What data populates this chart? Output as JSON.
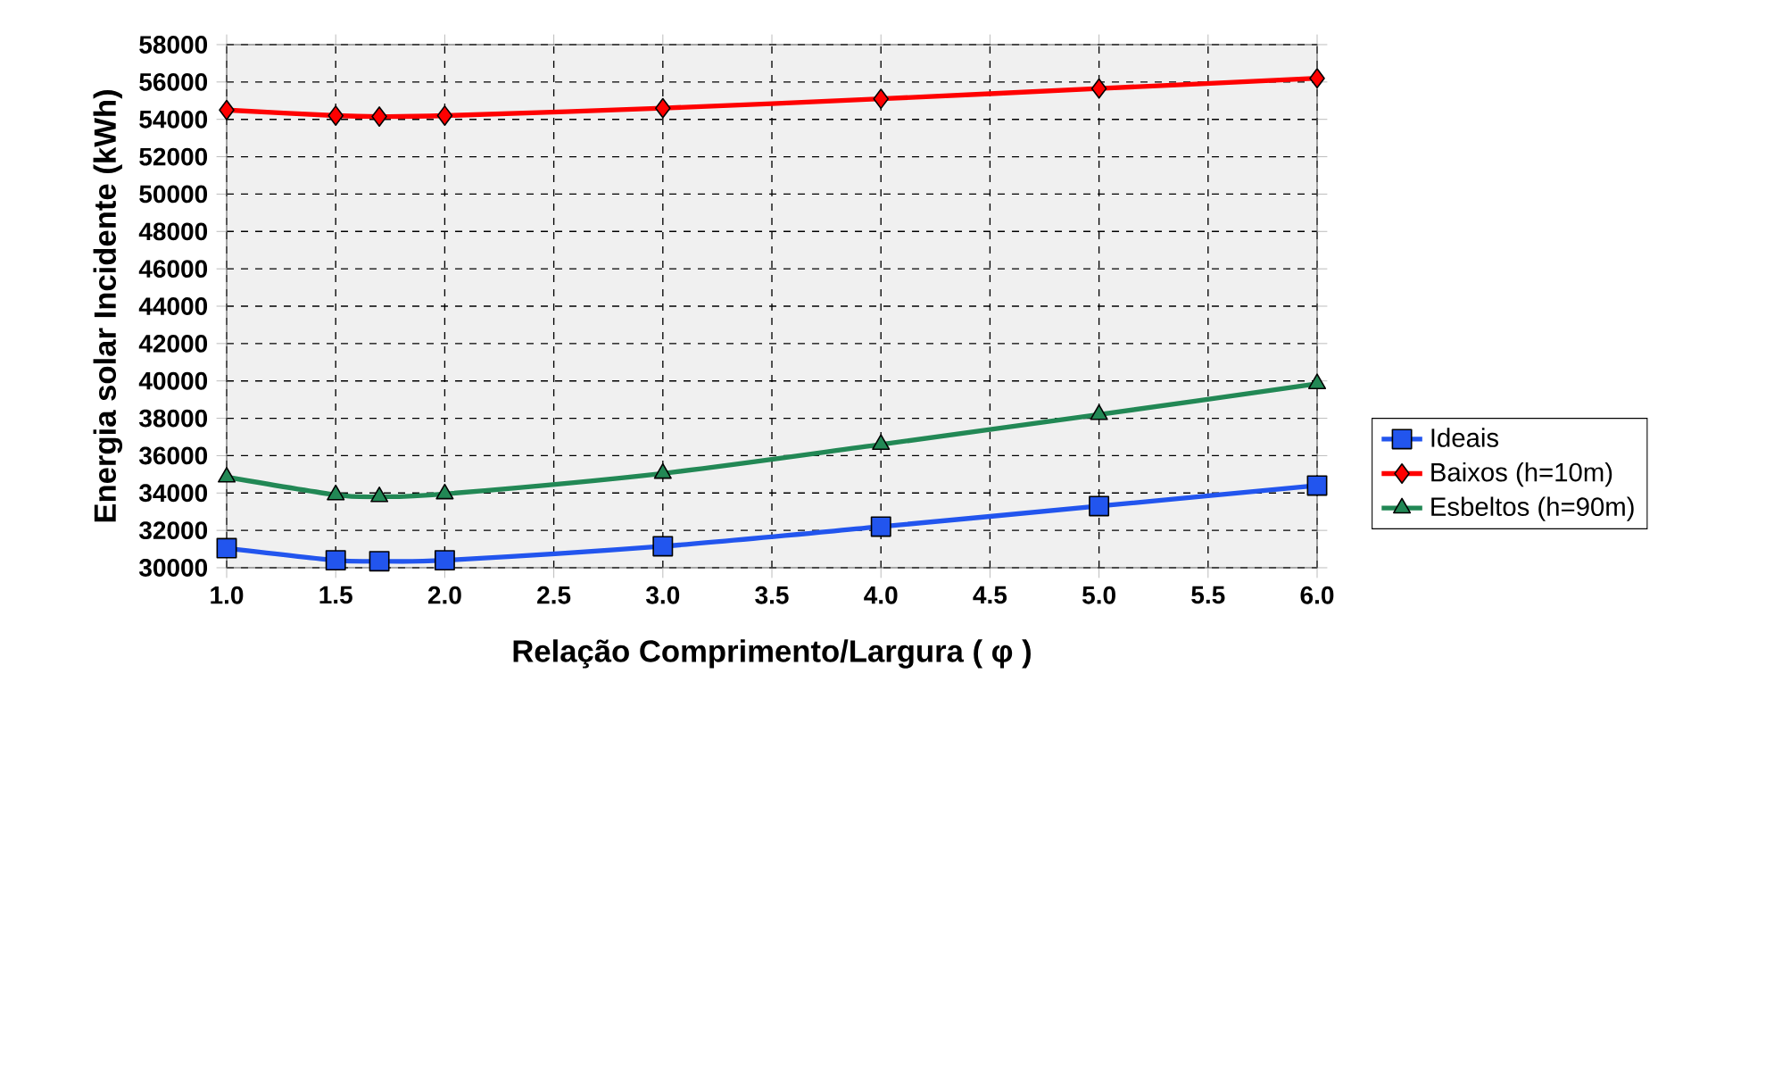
{
  "chart_data": {
    "type": "line",
    "xlabel": "Relação Comprimento/Largura ( φ )",
    "ylabel": "Energia solar Incidente (kWh)",
    "x": [
      1.0,
      1.5,
      1.7,
      2.0,
      3.0,
      4.0,
      5.0,
      6.0
    ],
    "series": [
      {
        "name": "Ideais",
        "color": "#2255ee",
        "marker": "square",
        "values": [
          31050,
          30400,
          30350,
          30400,
          31150,
          32200,
          33300,
          34400
        ]
      },
      {
        "name": "Baixos (h=10m)",
        "color": "#ff0000",
        "marker": "diamond",
        "values": [
          54500,
          54200,
          54150,
          54200,
          54600,
          55100,
          55650,
          56200
        ]
      },
      {
        "name": "Esbeltos (h=90m)",
        "color": "#228855",
        "marker": "triangle",
        "values": [
          34850,
          33900,
          33800,
          33950,
          35050,
          36600,
          38200,
          39850
        ]
      }
    ],
    "xlim": [
      1.0,
      6.0
    ],
    "xticks": [
      {
        "value": 1.0,
        "label": "1.0"
      },
      {
        "value": 1.5,
        "label": "1.5"
      },
      {
        "value": 2.0,
        "label": "2.0"
      },
      {
        "value": 2.5,
        "label": "2.5"
      },
      {
        "value": 3.0,
        "label": "3.0"
      },
      {
        "value": 3.5,
        "label": "3.5"
      },
      {
        "value": 4.0,
        "label": "4.0"
      },
      {
        "value": 4.5,
        "label": "4.5"
      },
      {
        "value": 5.0,
        "label": "5.0"
      },
      {
        "value": 5.5,
        "label": "5.5"
      },
      {
        "value": 6.0,
        "label": "6.0"
      }
    ],
    "ylim": [
      30000,
      58000
    ],
    "yticks": [
      30000,
      32000,
      34000,
      36000,
      38000,
      40000,
      42000,
      44000,
      46000,
      48000,
      50000,
      52000,
      54000,
      56000,
      58000
    ],
    "grid": true,
    "legend": "right",
    "line_style": "solid"
  }
}
